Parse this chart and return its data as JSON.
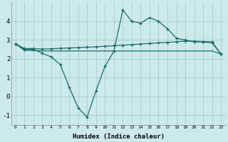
{
  "xlabel": "Humidex (Indice chaleur)",
  "x": [
    0,
    1,
    2,
    3,
    4,
    5,
    6,
    7,
    8,
    9,
    10,
    11,
    12,
    13,
    14,
    15,
    16,
    17,
    18,
    19,
    20,
    21,
    22,
    23
  ],
  "y_main": [
    2.8,
    2.5,
    2.5,
    2.3,
    2.1,
    1.7,
    0.5,
    -0.6,
    -1.1,
    0.3,
    1.6,
    2.4,
    4.6,
    4.0,
    3.9,
    4.2,
    4.0,
    3.6,
    3.1,
    3.0,
    2.9,
    2.9,
    2.85,
    2.25
  ],
  "y_upper": [
    2.8,
    2.55,
    2.55,
    2.52,
    2.54,
    2.56,
    2.58,
    2.6,
    2.62,
    2.64,
    2.67,
    2.7,
    2.73,
    2.76,
    2.79,
    2.82,
    2.85,
    2.88,
    2.91,
    2.94,
    2.94,
    2.92,
    2.9,
    2.25
  ],
  "y_flat": [
    2.8,
    2.45,
    2.45,
    2.42,
    2.42,
    2.42,
    2.42,
    2.42,
    2.42,
    2.42,
    2.42,
    2.42,
    2.42,
    2.42,
    2.42,
    2.42,
    2.42,
    2.42,
    2.42,
    2.42,
    2.42,
    2.42,
    2.42,
    2.25
  ],
  "bg_color": "#cdeaea",
  "grid_color": "#aacccc",
  "line_color": "#1a6b6b",
  "ylim": [
    -1.5,
    5.0
  ],
  "xlim": [
    -0.5,
    23.5
  ],
  "yticks": [
    -1,
    0,
    1,
    2,
    3,
    4
  ],
  "xticks": [
    0,
    1,
    2,
    3,
    4,
    5,
    6,
    7,
    8,
    9,
    10,
    11,
    12,
    13,
    14,
    15,
    16,
    17,
    18,
    19,
    20,
    21,
    22,
    23
  ]
}
